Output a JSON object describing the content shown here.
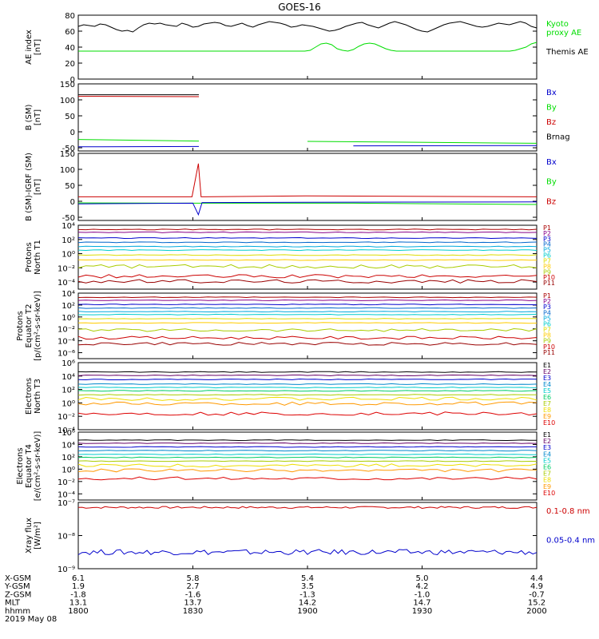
{
  "title": "GOES-16",
  "colors": {
    "black": "#000000",
    "red": "#cc0000",
    "green": "#00dd00",
    "blue": "#0000cc",
    "p": [
      "#aa0000",
      "#880088",
      "#0000cc",
      "#0066cc",
      "#00aadd",
      "#00cccc",
      "#dddd00",
      "#ffcc00",
      "#aacc00",
      "#cc0000",
      "#990000"
    ],
    "e": [
      "#000000",
      "#660066",
      "#0000cc",
      "#0088cc",
      "#00cccc",
      "#00cc66",
      "#aacc00",
      "#eedd00",
      "#ff9900",
      "#dd0000",
      "#990000"
    ]
  },
  "xaxis": {
    "ticks": [
      "1800",
      "1830",
      "1900",
      "1930",
      "2000"
    ],
    "rows": [
      {
        "label": "X-GSM",
        "values": [
          "6.1",
          "5.8",
          "5.4",
          "5.0",
          "4.4"
        ]
      },
      {
        "label": "Y-GSM",
        "values": [
          "1.9",
          "2.7",
          "3.5",
          "4.2",
          "4.9"
        ]
      },
      {
        "label": "Z-GSM",
        "values": [
          "-1.8",
          "-1.6",
          "-1.3",
          "-1.0",
          "-0.7"
        ]
      },
      {
        "label": "MLT",
        "values": [
          "13.1",
          "13.7",
          "14.2",
          "14.7",
          "15.2"
        ]
      },
      {
        "label": "hhmm",
        "values": [
          "1800",
          "1830",
          "1900",
          "1930",
          "2000"
        ]
      }
    ],
    "date": "2019 May 08"
  },
  "chart_data": [
    {
      "type": "line",
      "id": "ae",
      "ylabel": "AE index\n[nT]",
      "ylim": [
        0,
        80
      ],
      "yticks": [
        0,
        20,
        40,
        60,
        80
      ],
      "legend": [
        {
          "text": "Kyoto\nproxy AE",
          "color": "#00dd00"
        },
        {
          "text": "Themis AE",
          "color": "#000000"
        }
      ],
      "series": [
        {
          "name": "Themis AE",
          "color": "#000000",
          "values": [
            66,
            68,
            67,
            66,
            69,
            68,
            65,
            62,
            60,
            61,
            59,
            64,
            68,
            70,
            69,
            70,
            68,
            67,
            66,
            70,
            68,
            65,
            66,
            69,
            70,
            71,
            70,
            67,
            66,
            68,
            70,
            67,
            65,
            68,
            70,
            72,
            71,
            70,
            68,
            65,
            66,
            68,
            67,
            66,
            64,
            62,
            60,
            61,
            63,
            66,
            68,
            70,
            71,
            68,
            66,
            64,
            67,
            70,
            72,
            70,
            68,
            65,
            62,
            60,
            59,
            62,
            65,
            68,
            70,
            71,
            72,
            70,
            68,
            66,
            65,
            66,
            68,
            70,
            69,
            68,
            70,
            72,
            70,
            66,
            64
          ]
        },
        {
          "name": "Kyoto proxy AE",
          "color": "#00dd00",
          "values": [
            35,
            35,
            35,
            35,
            35,
            35,
            35,
            35,
            35,
            35,
            35,
            35,
            35,
            35,
            35,
            35,
            35,
            35,
            35,
            35,
            35,
            35,
            35,
            35,
            35,
            35,
            35,
            35,
            35,
            35,
            35,
            35,
            35,
            35,
            35,
            35,
            35,
            35,
            35,
            35,
            35,
            35,
            35,
            36,
            40,
            44,
            45,
            43,
            38,
            36,
            35,
            37,
            41,
            44,
            45,
            44,
            41,
            38,
            36,
            35,
            35,
            35,
            35,
            35,
            35,
            35,
            35,
            35,
            35,
            35,
            35,
            35,
            35,
            35,
            35,
            35,
            35,
            35,
            35,
            35,
            35,
            36,
            38,
            40,
            44,
            46
          ]
        }
      ]
    },
    {
      "type": "line",
      "id": "bsm",
      "ylabel": "B (SM)\n[nT]",
      "ylim": [
        -60,
        150
      ],
      "yticks": [
        -50,
        0,
        50,
        100,
        150
      ],
      "legend": [
        {
          "text": "Bx",
          "color": "#0000cc"
        },
        {
          "text": "By",
          "color": "#00dd00"
        },
        {
          "text": "Bz",
          "color": "#cc0000"
        },
        {
          "text": "Brnag",
          "color": "#000000"
        }
      ],
      "series": [
        {
          "name": "Brnag",
          "color": "#000000",
          "x": [
            0,
            0.263,
            0.277,
            1
          ],
          "values": [
            116,
            116,
            null,
            116
          ]
        },
        {
          "name": "Bz",
          "color": "#cc0000",
          "x": [
            0,
            0.263,
            0.277,
            1
          ],
          "values": [
            111,
            110,
            null,
            109
          ]
        },
        {
          "name": "By",
          "color": "#00dd00",
          "x": [
            0,
            0.263,
            0.277,
            0.5,
            1
          ],
          "values": [
            -24,
            -29,
            null,
            -30,
            -36
          ]
        },
        {
          "name": "Bx",
          "color": "#0000cc",
          "x": [
            0,
            0.263,
            0.277,
            0.6,
            1
          ],
          "values": [
            -47,
            -46,
            null,
            -44,
            -43
          ]
        }
      ]
    },
    {
      "type": "line",
      "id": "bdiff",
      "ylabel": "B (SM)-IGRF (SM)\n[nT]",
      "ylim": [
        -60,
        150
      ],
      "yticks": [
        -50,
        0,
        50,
        100,
        150
      ],
      "legend": [
        {
          "text": "Bx",
          "color": "#0000cc"
        },
        {
          "text": "By",
          "color": "#00dd00"
        },
        {
          "text": "Bz",
          "color": "#cc0000"
        }
      ],
      "series": [
        {
          "name": "Bz",
          "color": "#cc0000",
          "x": [
            0,
            0.248,
            0.262,
            0.268,
            0.275,
            0.5,
            1
          ],
          "values": [
            14,
            14,
            118,
            14,
            14,
            17,
            14
          ]
        },
        {
          "name": "By",
          "color": "#00dd00",
          "x": [
            0,
            0.3,
            0.6,
            1
          ],
          "values": [
            -5,
            -6,
            -6,
            -10
          ]
        },
        {
          "name": "Bx",
          "color": "#0000cc",
          "x": [
            0,
            0.25,
            0.262,
            0.27,
            0.5,
            1
          ],
          "values": [
            -8,
            -6,
            -42,
            -4,
            -3,
            -2
          ]
        }
      ]
    },
    {
      "type": "line",
      "id": "protons-t1",
      "ylabel": "Protons\nNorth T1",
      "log": true,
      "ylim": [
        -5,
        4
      ],
      "yticks": [
        -4,
        -2,
        0,
        2,
        4
      ],
      "legend": [
        {
          "text": "P1"
        },
        {
          "text": "P2"
        },
        {
          "text": "P3"
        },
        {
          "text": "P4"
        },
        {
          "text": "P5"
        },
        {
          "text": "P6"
        },
        {
          "text": "P7"
        },
        {
          "text": "P8"
        },
        {
          "text": "P9"
        },
        {
          "text": "P10"
        },
        {
          "text": "P11"
        }
      ],
      "levels": [
        3.4,
        3.0,
        2.2,
        1.6,
        1.0,
        0.5,
        -0.2,
        -0.9,
        -1.8,
        -3.2,
        -3.9
      ]
    },
    {
      "type": "line",
      "id": "protons-t2",
      "ylabel": "Protons\nEquator T2\n[p/(cm²-s-sr-keV)]",
      "log": true,
      "ylim": [
        -7,
        4
      ],
      "yticks": [
        -6,
        -4,
        -2,
        0,
        2,
        4
      ],
      "legend": [
        {
          "text": "P1"
        },
        {
          "text": "P2"
        },
        {
          "text": "P3"
        },
        {
          "text": "P4"
        },
        {
          "text": "P5"
        },
        {
          "text": "P6"
        },
        {
          "text": "P7"
        },
        {
          "text": "P8"
        },
        {
          "text": "P9"
        },
        {
          "text": "P10"
        },
        {
          "text": "P11"
        }
      ],
      "levels": [
        3.3,
        2.8,
        2.1,
        1.5,
        0.9,
        0.4,
        -0.3,
        -1.0,
        -2.2,
        -3.5,
        -4.5
      ]
    },
    {
      "type": "line",
      "id": "electrons-t3",
      "ylabel": "Electrons\nNorth T3",
      "log": true,
      "ylim": [
        -4,
        6
      ],
      "yticks": [
        -4,
        -2,
        0,
        2,
        4,
        6
      ],
      "legend": [
        {
          "text": "E1"
        },
        {
          "text": "E2"
        },
        {
          "text": "E3"
        },
        {
          "text": "E4"
        },
        {
          "text": "E5"
        },
        {
          "text": "E6"
        },
        {
          "text": "E7"
        },
        {
          "text": "E8"
        },
        {
          "text": "E9"
        },
        {
          "text": "E10"
        }
      ],
      "levels": [
        4.6,
        4.1,
        3.5,
        2.8,
        2.3,
        1.8,
        1.2,
        0.6,
        -0.1,
        -1.6
      ]
    },
    {
      "type": "line",
      "id": "electrons-t4",
      "ylabel": "Electrons\nEquator T4\n[e/(cm²-s-sr-keV)]",
      "log": true,
      "ylim": [
        -5,
        6
      ],
      "yticks": [
        -4,
        -2,
        0,
        2,
        4,
        6
      ],
      "legend": [
        {
          "text": "E1"
        },
        {
          "text": "E2"
        },
        {
          "text": "E3"
        },
        {
          "text": "E4"
        },
        {
          "text": "E5"
        },
        {
          "text": "E6"
        },
        {
          "text": "E7"
        },
        {
          "text": "E8"
        },
        {
          "text": "E9"
        },
        {
          "text": "E10"
        }
      ],
      "levels": [
        4.7,
        4.2,
        3.6,
        3.0,
        2.4,
        1.9,
        1.3,
        0.6,
        -0.2,
        -1.5
      ]
    },
    {
      "type": "line",
      "id": "xray",
      "ylabel": "Xray flux\n[W/m²]",
      "log": true,
      "ylim": [
        -9,
        -7
      ],
      "yticks": [
        -9,
        -8,
        -7
      ],
      "yticklabels": [
        "10⁻⁹",
        "10⁻⁸",
        "10⁻⁷"
      ],
      "legend": [
        {
          "text": "0.1-0.8 nm",
          "color": "#cc0000"
        },
        {
          "text": "0.05-0.4 nm",
          "color": "#0000cc"
        }
      ],
      "series": [
        {
          "name": "0.1-0.8 nm",
          "color": "#cc0000",
          "mean": -7.15,
          "amp": 0.03
        },
        {
          "name": "0.05-0.4 nm",
          "color": "#0000cc",
          "mean": -8.5,
          "amp": 0.08
        }
      ]
    }
  ]
}
